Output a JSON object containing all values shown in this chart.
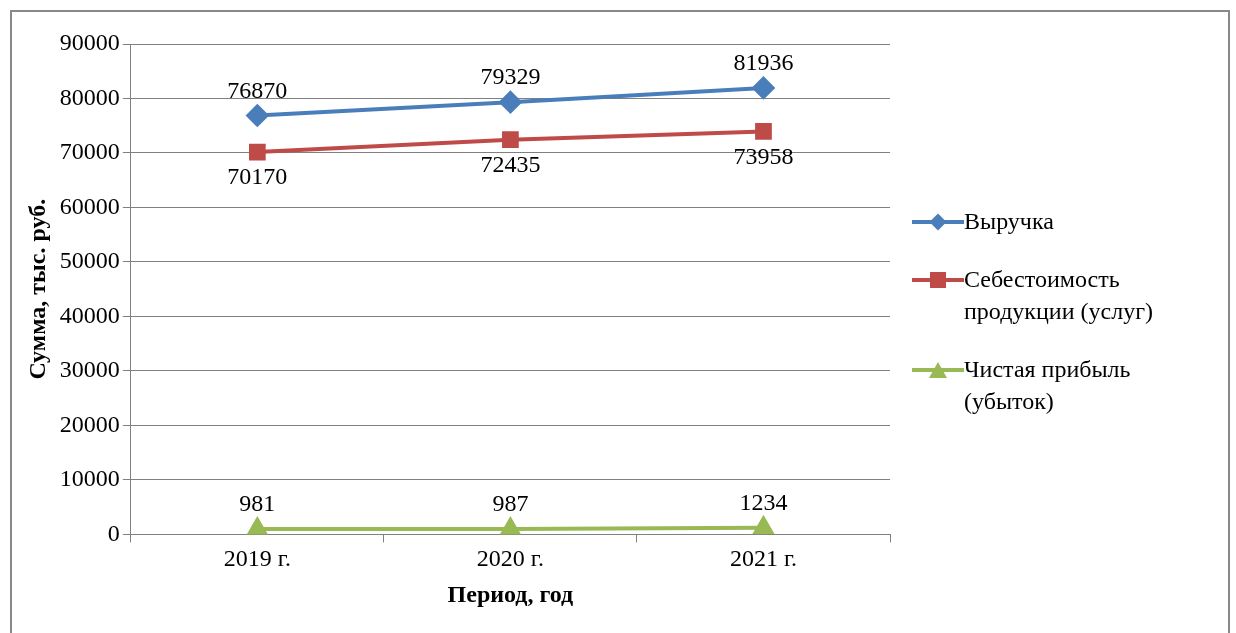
{
  "chart_data": {
    "type": "line",
    "xlabel": "Период, год",
    "ylabel": "Сумма, тыс. руб.",
    "categories": [
      "2019 г.",
      "2020 г.",
      "2021 г."
    ],
    "series": [
      {
        "name": "Выручка",
        "color": "#4a7ebb",
        "marker": "diamond",
        "values": [
          76870,
          79329,
          81936
        ]
      },
      {
        "name": "Себестоимость продукции (услуг)",
        "color": "#be4b48",
        "marker": "square",
        "values": [
          70170,
          72435,
          73958
        ]
      },
      {
        "name": "Чистая прибыль (убыток)",
        "color": "#98b954",
        "marker": "triangle",
        "values": [
          981,
          987,
          1234
        ]
      }
    ],
    "ylim": [
      0,
      90000
    ],
    "yticks": [
      0,
      10000,
      20000,
      30000,
      40000,
      50000,
      60000,
      70000,
      80000,
      90000
    ],
    "grid": "y",
    "legend": "right",
    "data_labels": true,
    "line_style": "solid"
  }
}
